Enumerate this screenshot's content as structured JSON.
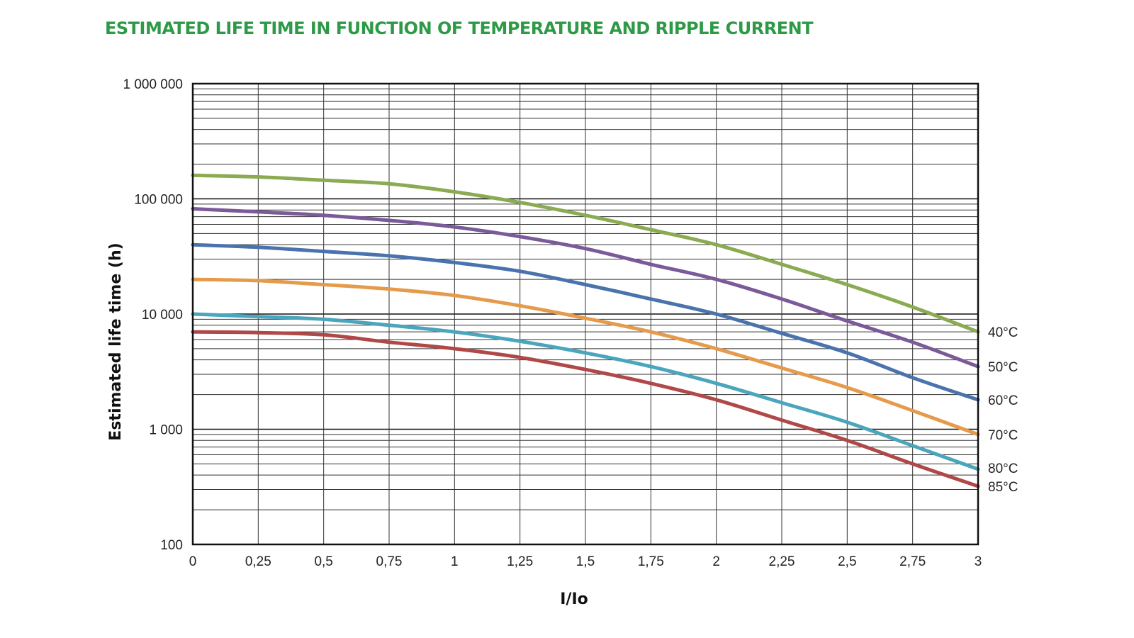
{
  "chart_data": {
    "type": "line",
    "title": "ESTIMATED LIFE TIME IN FUNCTION OF TEMPERATURE AND RIPPLE CURRENT",
    "xlabel": "I/Io",
    "ylabel": "Estimated life time (h)",
    "xlim": [
      0,
      3
    ],
    "ylim": [
      100,
      1000000
    ],
    "yscale": "log",
    "grid": true,
    "x_ticks": [
      0,
      0.25,
      0.5,
      0.75,
      1,
      1.25,
      1.5,
      1.75,
      2,
      2.25,
      2.5,
      2.75,
      3
    ],
    "x_tick_labels": [
      "0",
      "0,25",
      "0,5",
      "0,75",
      "1",
      "1,25",
      "1,5",
      "1,75",
      "2",
      "2,25",
      "2,5",
      "2,75",
      "3"
    ],
    "y_ticks": [
      100,
      1000,
      10000,
      100000,
      1000000
    ],
    "y_tick_labels": [
      "100",
      "1 000",
      "10 000",
      "100 000",
      "1 000 000"
    ],
    "x": [
      0,
      0.25,
      0.5,
      0.75,
      1,
      1.25,
      1.5,
      1.75,
      2,
      2.25,
      2.5,
      2.75,
      3
    ],
    "series": [
      {
        "name": "40°C",
        "color": "#8aab52",
        "values": [
          160000,
          155000,
          145000,
          135000,
          115000,
          93000,
          72000,
          54000,
          40000,
          27000,
          18000,
          11500,
          7000
        ]
      },
      {
        "name": "50°C",
        "color": "#7a5a98",
        "values": [
          82000,
          77000,
          72000,
          65000,
          57000,
          47000,
          37000,
          27000,
          20000,
          13500,
          8700,
          5700,
          3500
        ]
      },
      {
        "name": "60°C",
        "color": "#4a73ae",
        "values": [
          40000,
          38000,
          35000,
          32000,
          28000,
          23500,
          18000,
          13500,
          10000,
          6800,
          4600,
          2800,
          1800
        ]
      },
      {
        "name": "70°C",
        "color": "#e59b4c",
        "values": [
          20000,
          19500,
          18000,
          16500,
          14500,
          11800,
          9200,
          7000,
          5000,
          3400,
          2300,
          1450,
          900
        ]
      },
      {
        "name": "80°C",
        "color": "#4aa5bd",
        "values": [
          10000,
          9500,
          9000,
          8000,
          7000,
          5800,
          4600,
          3500,
          2500,
          1700,
          1150,
          720,
          450
        ]
      },
      {
        "name": "85°C",
        "color": "#b04848",
        "values": [
          7000,
          6900,
          6600,
          5700,
          5000,
          4200,
          3300,
          2500,
          1800,
          1200,
          800,
          500,
          320
        ]
      }
    ]
  }
}
